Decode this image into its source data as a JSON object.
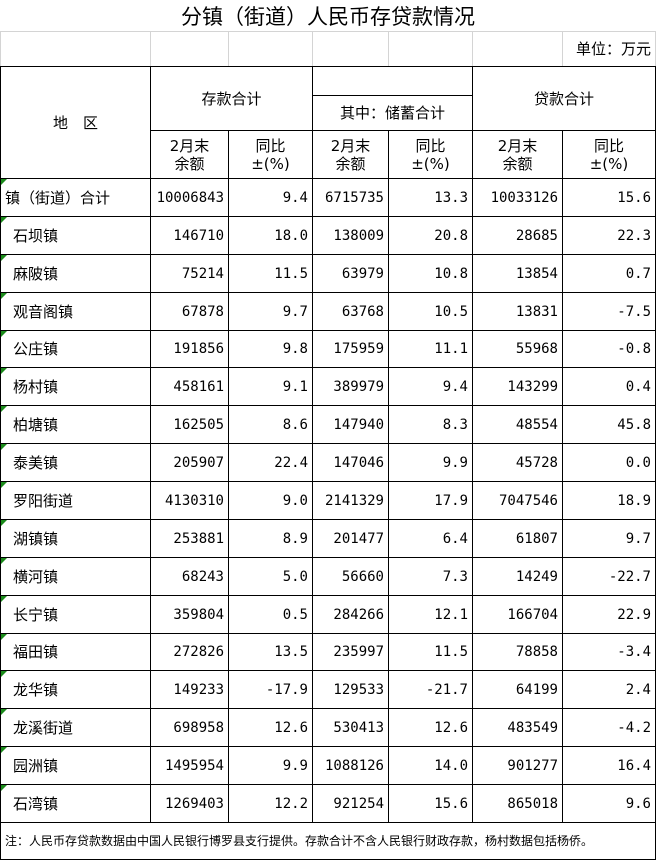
{
  "title": "分镇（街道）人民币存贷款情况",
  "unit": "单位：万元",
  "header": {
    "region": "地　区",
    "deposit_total": "存款合计",
    "savings_total": "其中：储蓄合计",
    "loan_total": "贷款合计",
    "sub": [
      "2月末\n余额",
      "同比\n±(%)",
      "2月末\n余额",
      "同比\n±(%)",
      "2月末\n余额",
      "同比\n±(%)"
    ]
  },
  "rows": [
    [
      "镇（街道）合计",
      "10006843",
      "9.4",
      "6715735",
      "13.3",
      "10033126",
      "15.6"
    ],
    [
      "石坝镇",
      "146710",
      "18.0",
      "138009",
      "20.8",
      "28685",
      "22.3"
    ],
    [
      "麻陂镇",
      "75214",
      "11.5",
      "63979",
      "10.8",
      "13854",
      "0.7"
    ],
    [
      "观音阁镇",
      "67878",
      "9.7",
      "63768",
      "10.5",
      "13831",
      "-7.5"
    ],
    [
      "公庄镇",
      "191856",
      "9.8",
      "175959",
      "11.1",
      "55968",
      "-0.8"
    ],
    [
      "杨村镇",
      "458161",
      "9.1",
      "389979",
      "9.4",
      "143299",
      "0.4"
    ],
    [
      "柏塘镇",
      "162505",
      "8.6",
      "147940",
      "8.3",
      "48554",
      "45.8"
    ],
    [
      "泰美镇",
      "205907",
      "22.4",
      "147046",
      "9.9",
      "45728",
      "0.0"
    ],
    [
      "罗阳街道",
      "4130310",
      "9.0",
      "2141329",
      "17.9",
      "7047546",
      "18.9"
    ],
    [
      "湖镇镇",
      "253881",
      "8.9",
      "201477",
      "6.4",
      "61807",
      "9.7"
    ],
    [
      "横河镇",
      "68243",
      "5.0",
      "56660",
      "7.3",
      "14249",
      "-22.7"
    ],
    [
      "长宁镇",
      "359804",
      "0.5",
      "284266",
      "12.1",
      "166704",
      "22.9"
    ],
    [
      "福田镇",
      "272826",
      "13.5",
      "235997",
      "11.5",
      "78858",
      "-3.4"
    ],
    [
      "龙华镇",
      "149233",
      "-17.9",
      "129533",
      "-21.7",
      "64199",
      "2.4"
    ],
    [
      "龙溪街道",
      "698958",
      "12.6",
      "530413",
      "12.6",
      "483549",
      "-4.2"
    ],
    [
      "园洲镇",
      "1495954",
      "9.9",
      "1088126",
      "14.0",
      "901277",
      "16.4"
    ],
    [
      "石湾镇",
      "1269403",
      "12.2",
      "921254",
      "15.6",
      "865018",
      "9.6"
    ]
  ],
  "note": "注：人民币存贷款数据由中国人民银行博罗县支行提供。存款合计不含人民银行财政存款，杨村数据包括杨侨。"
}
